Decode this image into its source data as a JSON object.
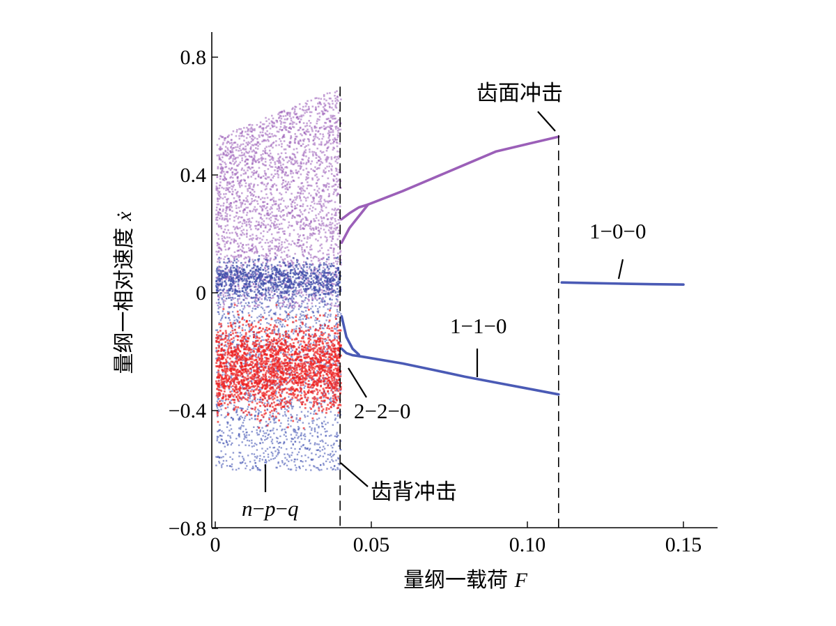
{
  "chart_data": {
    "type": "scatter",
    "title": "",
    "xlabel": "量纲一载荷 F",
    "ylabel": "量纲一相对速度 ẋ",
    "xlim": [
      0,
      0.16
    ],
    "ylim": [
      -0.8,
      0.88
    ],
    "xticks": [
      0,
      0.05,
      0.1,
      0.15
    ],
    "xtick_labels": [
      "0",
      "0.05",
      "0.10",
      "0.15"
    ],
    "yticks": [
      -0.8,
      -0.4,
      0,
      0.4,
      0.8
    ],
    "ytick_labels": [
      "−0.8",
      "−0.4",
      "0",
      "0.4",
      "0.8"
    ],
    "grid": false,
    "colors": {
      "upper": "#9b5fb8",
      "lower": "#4a5ab5",
      "chaos_red": "#ee2222",
      "chaos_blue": "#3c4aa8"
    },
    "chaotic_region": {
      "x_range": [
        0,
        0.04
      ],
      "upper_band": {
        "y_bottom_start": -0.05,
        "y_top_start": 0.53,
        "y_top_end": 0.7
      },
      "lower_band": {
        "y_top": 0.02,
        "y_bottom": -0.6
      }
    },
    "series": [
      {
        "label": "2-2-0",
        "color": "#9b5fb8",
        "x": [
          0.0405,
          0.043,
          0.046,
          0.049
        ],
        "y": [
          0.17,
          0.22,
          0.26,
          0.3
        ]
      },
      {
        "label": "2-2-0",
        "color": "#9b5fb8",
        "x": [
          0.0405,
          0.043,
          0.046,
          0.049
        ],
        "y": [
          0.25,
          0.27,
          0.29,
          0.3
        ]
      },
      {
        "label": "1-1-0",
        "color": "#9b5fb8",
        "x": [
          0.049,
          0.06,
          0.07,
          0.08,
          0.09,
          0.1,
          0.11
        ],
        "y": [
          0.3,
          0.345,
          0.39,
          0.435,
          0.48,
          0.505,
          0.53
        ]
      },
      {
        "label": "2-2-0",
        "color": "#4a5ab5",
        "x": [
          0.0405,
          0.042,
          0.044,
          0.046
        ],
        "y": [
          -0.08,
          -0.15,
          -0.19,
          -0.21
        ]
      },
      {
        "label": "2-2-0",
        "color": "#4a5ab5",
        "x": [
          0.0405,
          0.042,
          0.044,
          0.046
        ],
        "y": [
          -0.19,
          -0.205,
          -0.212,
          -0.215
        ]
      },
      {
        "label": "1-1-0",
        "color": "#4a5ab5",
        "x": [
          0.046,
          0.06,
          0.07,
          0.08,
          0.09,
          0.1,
          0.11
        ],
        "y": [
          -0.215,
          -0.24,
          -0.262,
          -0.285,
          -0.305,
          -0.325,
          -0.345
        ]
      },
      {
        "label": "1-0-0",
        "color": "#4a5ab5",
        "x": [
          0.111,
          0.12,
          0.13,
          0.14,
          0.15
        ],
        "y": [
          0.035,
          0.033,
          0.031,
          0.029,
          0.028
        ]
      }
    ],
    "vertical_lines": [
      0.04,
      0.11
    ],
    "annotations": [
      {
        "text": "齿面冲击",
        "x": 0.11,
        "y": 0.53
      },
      {
        "text": "齿背冲击",
        "x": 0.04,
        "y": -0.56
      },
      {
        "text": "1-0-0",
        "x": 0.13,
        "y": 0.035
      },
      {
        "text": "1-1-0",
        "x": 0.085,
        "y": -0.28
      },
      {
        "text": "2-2-0",
        "x": 0.044,
        "y": -0.21
      },
      {
        "text": "n-p-q",
        "x": 0.016,
        "y": -0.6
      }
    ]
  },
  "labels": {
    "xlabel_text": "量纲一载荷 ",
    "xlabel_var": "F",
    "ylabel_text": "量纲一相对速度 ",
    "ylabel_var": "ẋ",
    "impact_face": "齿面冲击",
    "impact_back": "齿背冲击",
    "mode_100": "1−0−0",
    "mode_110": "1−1−0",
    "mode_220": "2−2−0",
    "mode_npq_n": "n",
    "mode_npq_p": "p",
    "mode_npq_q": "q",
    "dash": "−"
  }
}
